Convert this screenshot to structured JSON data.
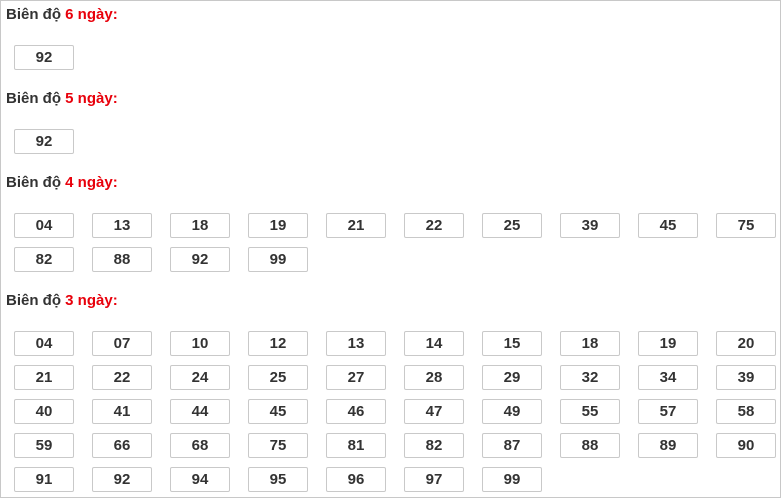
{
  "sections": [
    {
      "prefix": "Biên độ",
      "highlight": "6 ngày:",
      "numbers": [
        "92"
      ]
    },
    {
      "prefix": "Biên độ",
      "highlight": "5 ngày:",
      "numbers": [
        "92"
      ]
    },
    {
      "prefix": "Biên độ",
      "highlight": "4 ngày:",
      "numbers": [
        "04",
        "13",
        "18",
        "19",
        "21",
        "22",
        "25",
        "39",
        "45",
        "75",
        "82",
        "88",
        "92",
        "99"
      ]
    },
    {
      "prefix": "Biên độ",
      "highlight": "3 ngày:",
      "numbers": [
        "04",
        "07",
        "10",
        "12",
        "13",
        "14",
        "15",
        "18",
        "19",
        "20",
        "21",
        "22",
        "24",
        "25",
        "27",
        "28",
        "29",
        "32",
        "34",
        "39",
        "40",
        "41",
        "44",
        "45",
        "46",
        "47",
        "49",
        "55",
        "57",
        "58",
        "59",
        "66",
        "68",
        "75",
        "81",
        "82",
        "87",
        "88",
        "89",
        "90",
        "91",
        "92",
        "94",
        "95",
        "96",
        "97",
        "99"
      ]
    }
  ],
  "colors": {
    "highlight": "#e8000b",
    "text": "#333333",
    "border": "#c9c9c9"
  }
}
